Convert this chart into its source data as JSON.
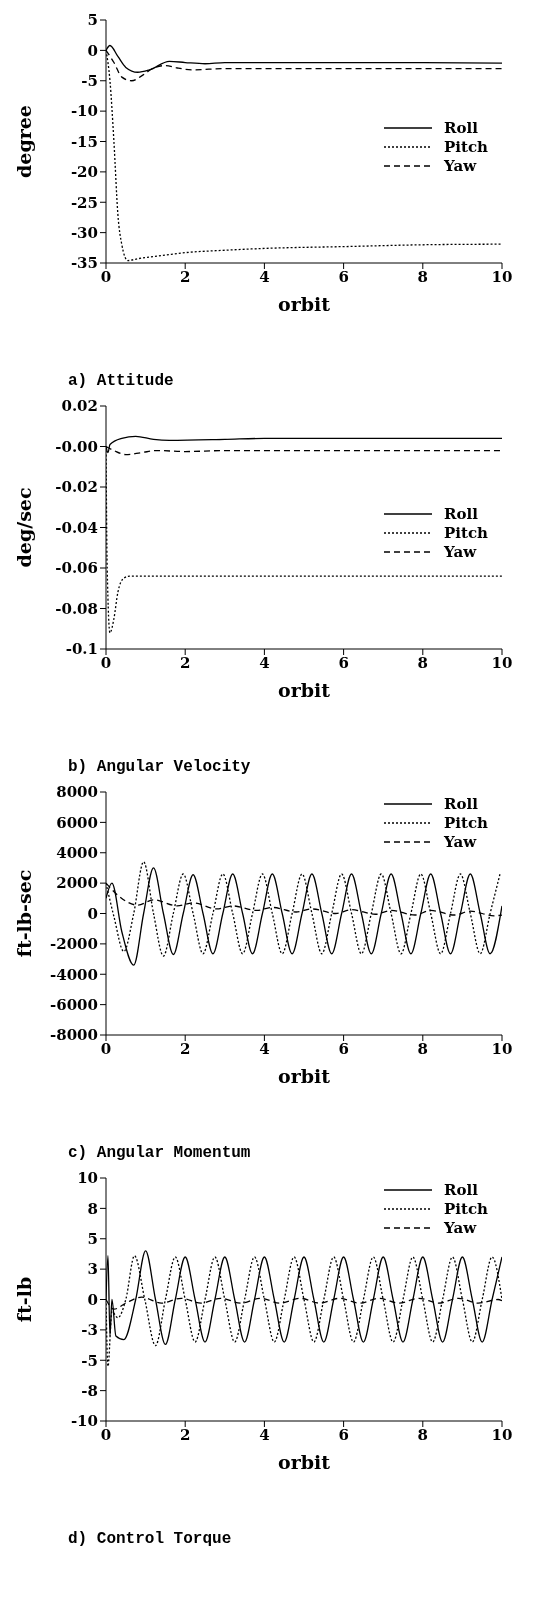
{
  "chart_data": [
    {
      "type": "line",
      "title": "a) Attitude",
      "xlabel": "orbit",
      "ylabel": "degree",
      "xlim": [
        0,
        10
      ],
      "xticks": [
        0,
        2,
        4,
        6,
        8,
        10
      ],
      "ylim": [
        -35,
        5
      ],
      "yticks": [
        -35,
        -30,
        -25,
        -20,
        -15,
        -10,
        -5,
        0,
        5
      ],
      "legend": "right",
      "series": [
        {
          "name": "Roll",
          "color": "#000000",
          "line_style": "solid",
          "x": [
            0,
            0.1,
            0.3,
            0.5,
            0.8,
            1.1,
            1.6,
            2.0,
            2.5,
            3,
            4,
            6,
            8,
            10
          ],
          "values": [
            0,
            0.8,
            -1,
            -2.8,
            -3.6,
            -3.2,
            -1.8,
            -2.0,
            -2.2,
            -2.0,
            -2.0,
            -2.0,
            -2.0,
            -2.1
          ]
        },
        {
          "name": "Pitch",
          "color": "#000000",
          "line_style": "dotted",
          "x": [
            0,
            0.1,
            0.2,
            0.3,
            0.4,
            0.55,
            0.8,
            1.5,
            2,
            3,
            4,
            6,
            8,
            10
          ],
          "values": [
            0,
            -5,
            -15,
            -27,
            -32,
            -34.6,
            -34.3,
            -33.7,
            -33.3,
            -32.9,
            -32.6,
            -32.3,
            -32,
            -31.9
          ]
        },
        {
          "name": "Yaw",
          "color": "#000000",
          "line_style": "dashed",
          "x": [
            0,
            0.2,
            0.4,
            0.65,
            0.9,
            1.2,
            1.5,
            1.8,
            2.2,
            3,
            4,
            6,
            8,
            10
          ],
          "values": [
            0,
            -2,
            -4.4,
            -5,
            -4.2,
            -2.9,
            -2.5,
            -2.9,
            -3.2,
            -3,
            -3,
            -3,
            -3,
            -3
          ]
        }
      ]
    },
    {
      "type": "line",
      "title": "b) Angular Velocity",
      "xlabel": "orbit",
      "ylabel": "deg/sec",
      "xlim": [
        0,
        10
      ],
      "xticks": [
        0,
        2,
        4,
        6,
        8,
        10
      ],
      "ylim": [
        -0.1,
        0.02
      ],
      "yticks": [
        -0.1,
        -0.08,
        -0.06,
        -0.04,
        -0.02,
        {
          "value": 0,
          "label": "-0.00"
        },
        0.02
      ],
      "legend": "right",
      "series": [
        {
          "name": "Roll",
          "color": "#000000",
          "line_style": "solid",
          "x": [
            0,
            0.05,
            0.1,
            0.4,
            0.75,
            1.2,
            1.6,
            3,
            4,
            6,
            8,
            10
          ],
          "values": [
            0,
            -0.003,
            0.001,
            0.004,
            0.005,
            0.0035,
            0.003,
            0.0035,
            0.004,
            0.004,
            0.004,
            0.004
          ]
        },
        {
          "name": "Pitch",
          "color": "#000000",
          "line_style": "dotted",
          "x": [
            0,
            0.03,
            0.1,
            0.2,
            0.3,
            0.45,
            0.6,
            2,
            4,
            6,
            8,
            10
          ],
          "values": [
            0,
            -0.06,
            -0.092,
            -0.085,
            -0.072,
            -0.065,
            -0.064,
            -0.064,
            -0.064,
            -0.064,
            -0.064,
            -0.064
          ]
        },
        {
          "name": "Yaw",
          "color": "#000000",
          "line_style": "dashed",
          "x": [
            0,
            0.2,
            0.5,
            0.9,
            1.3,
            2,
            3,
            4,
            6,
            8,
            10
          ],
          "values": [
            0,
            -0.002,
            -0.004,
            -0.003,
            -0.002,
            -0.0025,
            -0.002,
            -0.002,
            -0.002,
            -0.002,
            -0.002
          ]
        }
      ]
    },
    {
      "type": "line",
      "title": "c) Angular Momentum",
      "xlabel": "orbit",
      "ylabel": "ft-lb-sec",
      "xlim": [
        0,
        10
      ],
      "xticks": [
        0,
        2,
        4,
        6,
        8,
        10
      ],
      "ylim": [
        -8000,
        8000
      ],
      "yticks": [
        -8000,
        -6000,
        -4000,
        -2000,
        0,
        2000,
        4000,
        6000,
        8000
      ],
      "legend": "top right",
      "series": [
        {
          "name": "Roll",
          "color": "#000000",
          "line_style": "solid",
          "x": [
            0,
            0.15,
            0.4,
            0.7,
            0.95,
            1.2,
            1.45,
            1.7,
            1.95,
            2.2,
            2.45,
            2.7,
            2.95,
            3.2,
            3.45,
            3.7,
            3.95,
            4.2,
            4.45,
            4.7,
            4.95,
            5.2,
            5.45,
            5.7,
            5.95,
            6.2,
            6.45,
            6.7,
            6.95,
            7.2,
            7.45,
            7.7,
            7.95,
            8.2,
            8.45,
            8.7,
            8.95,
            9.2,
            9.45,
            9.7,
            10
          ],
          "values": [
            1000,
            2000,
            -1200,
            -3400,
            0,
            3000,
            0,
            -2700,
            0,
            2550,
            0,
            -2650,
            0,
            2600,
            0,
            -2650,
            0,
            2600,
            0,
            -2650,
            0,
            2600,
            0,
            -2650,
            0,
            2600,
            0,
            -2650,
            0,
            2600,
            0,
            -2650,
            0,
            2600,
            0,
            -2650,
            0,
            2600,
            0,
            -2650,
            500
          ]
        },
        {
          "name": "Pitch",
          "color": "#000000",
          "line_style": "dotted",
          "x": [
            0,
            0.2,
            0.45,
            0.7,
            0.95,
            1.2,
            1.45,
            1.7,
            1.95,
            2.2,
            2.45,
            2.7,
            2.95,
            3.2,
            3.45,
            3.7,
            3.95,
            4.2,
            4.45,
            4.7,
            4.95,
            5.2,
            5.45,
            5.7,
            5.95,
            6.2,
            6.45,
            6.7,
            6.95,
            7.2,
            7.45,
            7.7,
            7.95,
            8.2,
            8.45,
            8.7,
            8.95,
            9.2,
            9.45,
            9.7,
            9.95
          ],
          "values": [
            2000,
            -200,
            -2500,
            0,
            3400,
            0,
            -2800,
            0,
            2600,
            0,
            -2650,
            0,
            2600,
            0,
            -2650,
            0,
            2600,
            0,
            -2650,
            0,
            2600,
            0,
            -2650,
            0,
            2600,
            0,
            -2650,
            0,
            2600,
            0,
            -2650,
            0,
            2600,
            0,
            -2650,
            0,
            2600,
            0,
            -2650,
            0,
            2600
          ]
        },
        {
          "name": "Yaw",
          "color": "#000000",
          "line_style": "dashed",
          "x": [
            0,
            0.3,
            0.8,
            1.2,
            1.8,
            2.2,
            2.8,
            3.2,
            3.8,
            4.2,
            4.8,
            5.2,
            5.8,
            6.2,
            6.8,
            7.2,
            7.8,
            8.2,
            8.8,
            9.2,
            9.8,
            10
          ],
          "values": [
            2000,
            1200,
            550,
            900,
            500,
            700,
            300,
            500,
            200,
            400,
            100,
            300,
            0,
            250,
            -50,
            200,
            -100,
            200,
            -100,
            150,
            -150,
            -100
          ]
        }
      ]
    },
    {
      "type": "line",
      "title": "d) Control Torque",
      "xlabel": "orbit",
      "ylabel": "ft-lb",
      "xlim": [
        0,
        10
      ],
      "xticks": [
        0,
        2,
        4,
        6,
        8,
        10
      ],
      "ylim": [
        -10,
        10
      ],
      "yticks": [
        -10,
        {
          "value": -7.5,
          "label": "-8"
        },
        -5,
        {
          "value": -2.5,
          "label": "-3"
        },
        0,
        {
          "value": 2.5,
          "label": "3"
        },
        5,
        {
          "value": 7.5,
          "label": "8"
        },
        10
      ],
      "legend": "top right",
      "series": [
        {
          "name": "Roll",
          "color": "#000000",
          "line_style": "solid",
          "x": [
            0,
            0.05,
            0.1,
            0.15,
            0.25,
            0.45,
            0.75,
            1.0,
            1.25,
            1.5,
            1.75,
            2.0,
            2.25,
            2.5,
            2.75,
            3.0,
            3.25,
            3.5,
            3.75,
            4.0,
            4.25,
            4.5,
            4.75,
            5.0,
            5.25,
            5.5,
            5.75,
            6.0,
            6.25,
            6.5,
            6.75,
            7.0,
            7.25,
            7.5,
            7.75,
            8.0,
            8.25,
            8.5,
            8.75,
            9.0,
            9.25,
            9.5,
            9.75,
            10
          ],
          "values": [
            0,
            3.6,
            -3,
            0,
            -3,
            -3.3,
            0,
            4.0,
            0,
            -3.7,
            0,
            3.5,
            0,
            -3.5,
            0,
            3.5,
            0,
            -3.5,
            0,
            3.5,
            0,
            -3.5,
            0,
            3.5,
            0,
            -3.5,
            0,
            3.5,
            0,
            -3.5,
            0,
            3.5,
            0,
            -3.5,
            0,
            3.5,
            0,
            -3.5,
            0,
            3.5,
            0,
            -3.5,
            0,
            3.5
          ]
        },
        {
          "name": "Pitch",
          "color": "#000000",
          "line_style": "dotted",
          "x": [
            0,
            0.05,
            0.15,
            0.3,
            0.5,
            0.72,
            0.98,
            1.25,
            1.5,
            1.75,
            2.0,
            2.25,
            2.5,
            2.75,
            3.0,
            3.25,
            3.5,
            3.75,
            4.0,
            4.25,
            4.5,
            4.75,
            5.0,
            5.25,
            5.5,
            5.75,
            6.0,
            6.25,
            6.5,
            6.75,
            7.0,
            7.25,
            7.5,
            7.75,
            8.0,
            8.25,
            8.5,
            8.75,
            9.0,
            9.25,
            9.5,
            9.75,
            10
          ],
          "values": [
            0,
            -5.5,
            -1,
            -1.5,
            0,
            3.6,
            0,
            -3.8,
            0,
            3.5,
            0,
            -3.5,
            0,
            3.5,
            0,
            -3.5,
            0,
            3.5,
            0,
            -3.5,
            0,
            3.5,
            0,
            -3.5,
            0,
            3.5,
            0,
            -3.5,
            0,
            3.5,
            0,
            -3.5,
            0,
            3.5,
            0,
            -3.5,
            0,
            3.5,
            0,
            -3.5,
            0,
            3.5,
            0
          ]
        },
        {
          "name": "Yaw",
          "color": "#000000",
          "line_style": "dashed",
          "x": [
            0,
            0.2,
            0.5,
            0.9,
            1.4,
            1.9,
            2.4,
            2.9,
            3.4,
            3.9,
            4.4,
            4.9,
            5.4,
            5.9,
            6.4,
            6.9,
            7.4,
            7.9,
            8.4,
            8.9,
            9.4,
            9.9,
            10
          ],
          "values": [
            0,
            -0.8,
            -0.3,
            0.2,
            -0.3,
            0.1,
            -0.3,
            0.1,
            -0.3,
            0.1,
            -0.3,
            0.1,
            -0.3,
            0.1,
            -0.3,
            0.1,
            -0.3,
            0.1,
            -0.3,
            0.1,
            -0.3,
            0,
            -0.1
          ]
        }
      ]
    }
  ]
}
